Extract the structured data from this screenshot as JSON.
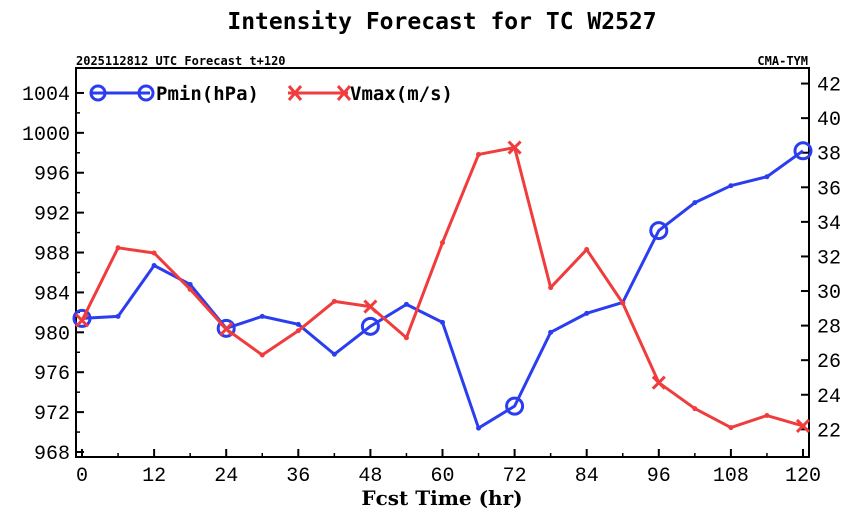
{
  "chart_data": {
    "type": "line",
    "title": "Intensity Forecast for TC W2527",
    "subtitle_left": "2025112812 UTC Forecast t+120",
    "subtitle_right": "CMA-TYM",
    "xlabel": "Fcst Time (hr)",
    "x": [
      0,
      6,
      12,
      18,
      24,
      30,
      36,
      42,
      48,
      54,
      60,
      66,
      72,
      78,
      84,
      90,
      96,
      102,
      108,
      114,
      120
    ],
    "xlim": [
      -1,
      121
    ],
    "xticks": [
      0,
      12,
      24,
      36,
      48,
      60,
      72,
      84,
      96,
      108,
      120
    ],
    "left_axis": {
      "ylim": [
        967.5,
        1006.5
      ],
      "ticks": [
        968,
        972,
        976,
        980,
        984,
        988,
        992,
        996,
        1000,
        1004
      ]
    },
    "right_axis": {
      "ylim": [
        20.4,
        42.9
      ],
      "ticks": [
        22,
        24,
        26,
        28,
        30,
        32,
        34,
        36,
        38,
        40,
        42
      ]
    },
    "series": [
      {
        "name": "Pmin(hPa)",
        "axis": "left",
        "color": "#2a3ef0",
        "marker": "circle",
        "marker_every": 4,
        "values": [
          981.4,
          981.6,
          986.7,
          984.8,
          980.4,
          981.6,
          980.8,
          977.8,
          980.6,
          982.8,
          981.0,
          970.4,
          972.6,
          980.0,
          981.9,
          983.0,
          990.2,
          993.0,
          994.7,
          995.6,
          998.2
        ]
      },
      {
        "name": "Vmax(m/s)",
        "axis": "right",
        "color": "#f03c3c",
        "marker": "x",
        "marker_every": 4,
        "values": [
          28.3,
          32.5,
          32.2,
          30.1,
          27.8,
          26.3,
          27.7,
          29.4,
          29.1,
          27.3,
          32.8,
          37.9,
          38.3,
          30.2,
          32.4,
          29.3,
          24.7,
          23.2,
          22.1,
          22.8,
          22.2
        ]
      }
    ]
  }
}
